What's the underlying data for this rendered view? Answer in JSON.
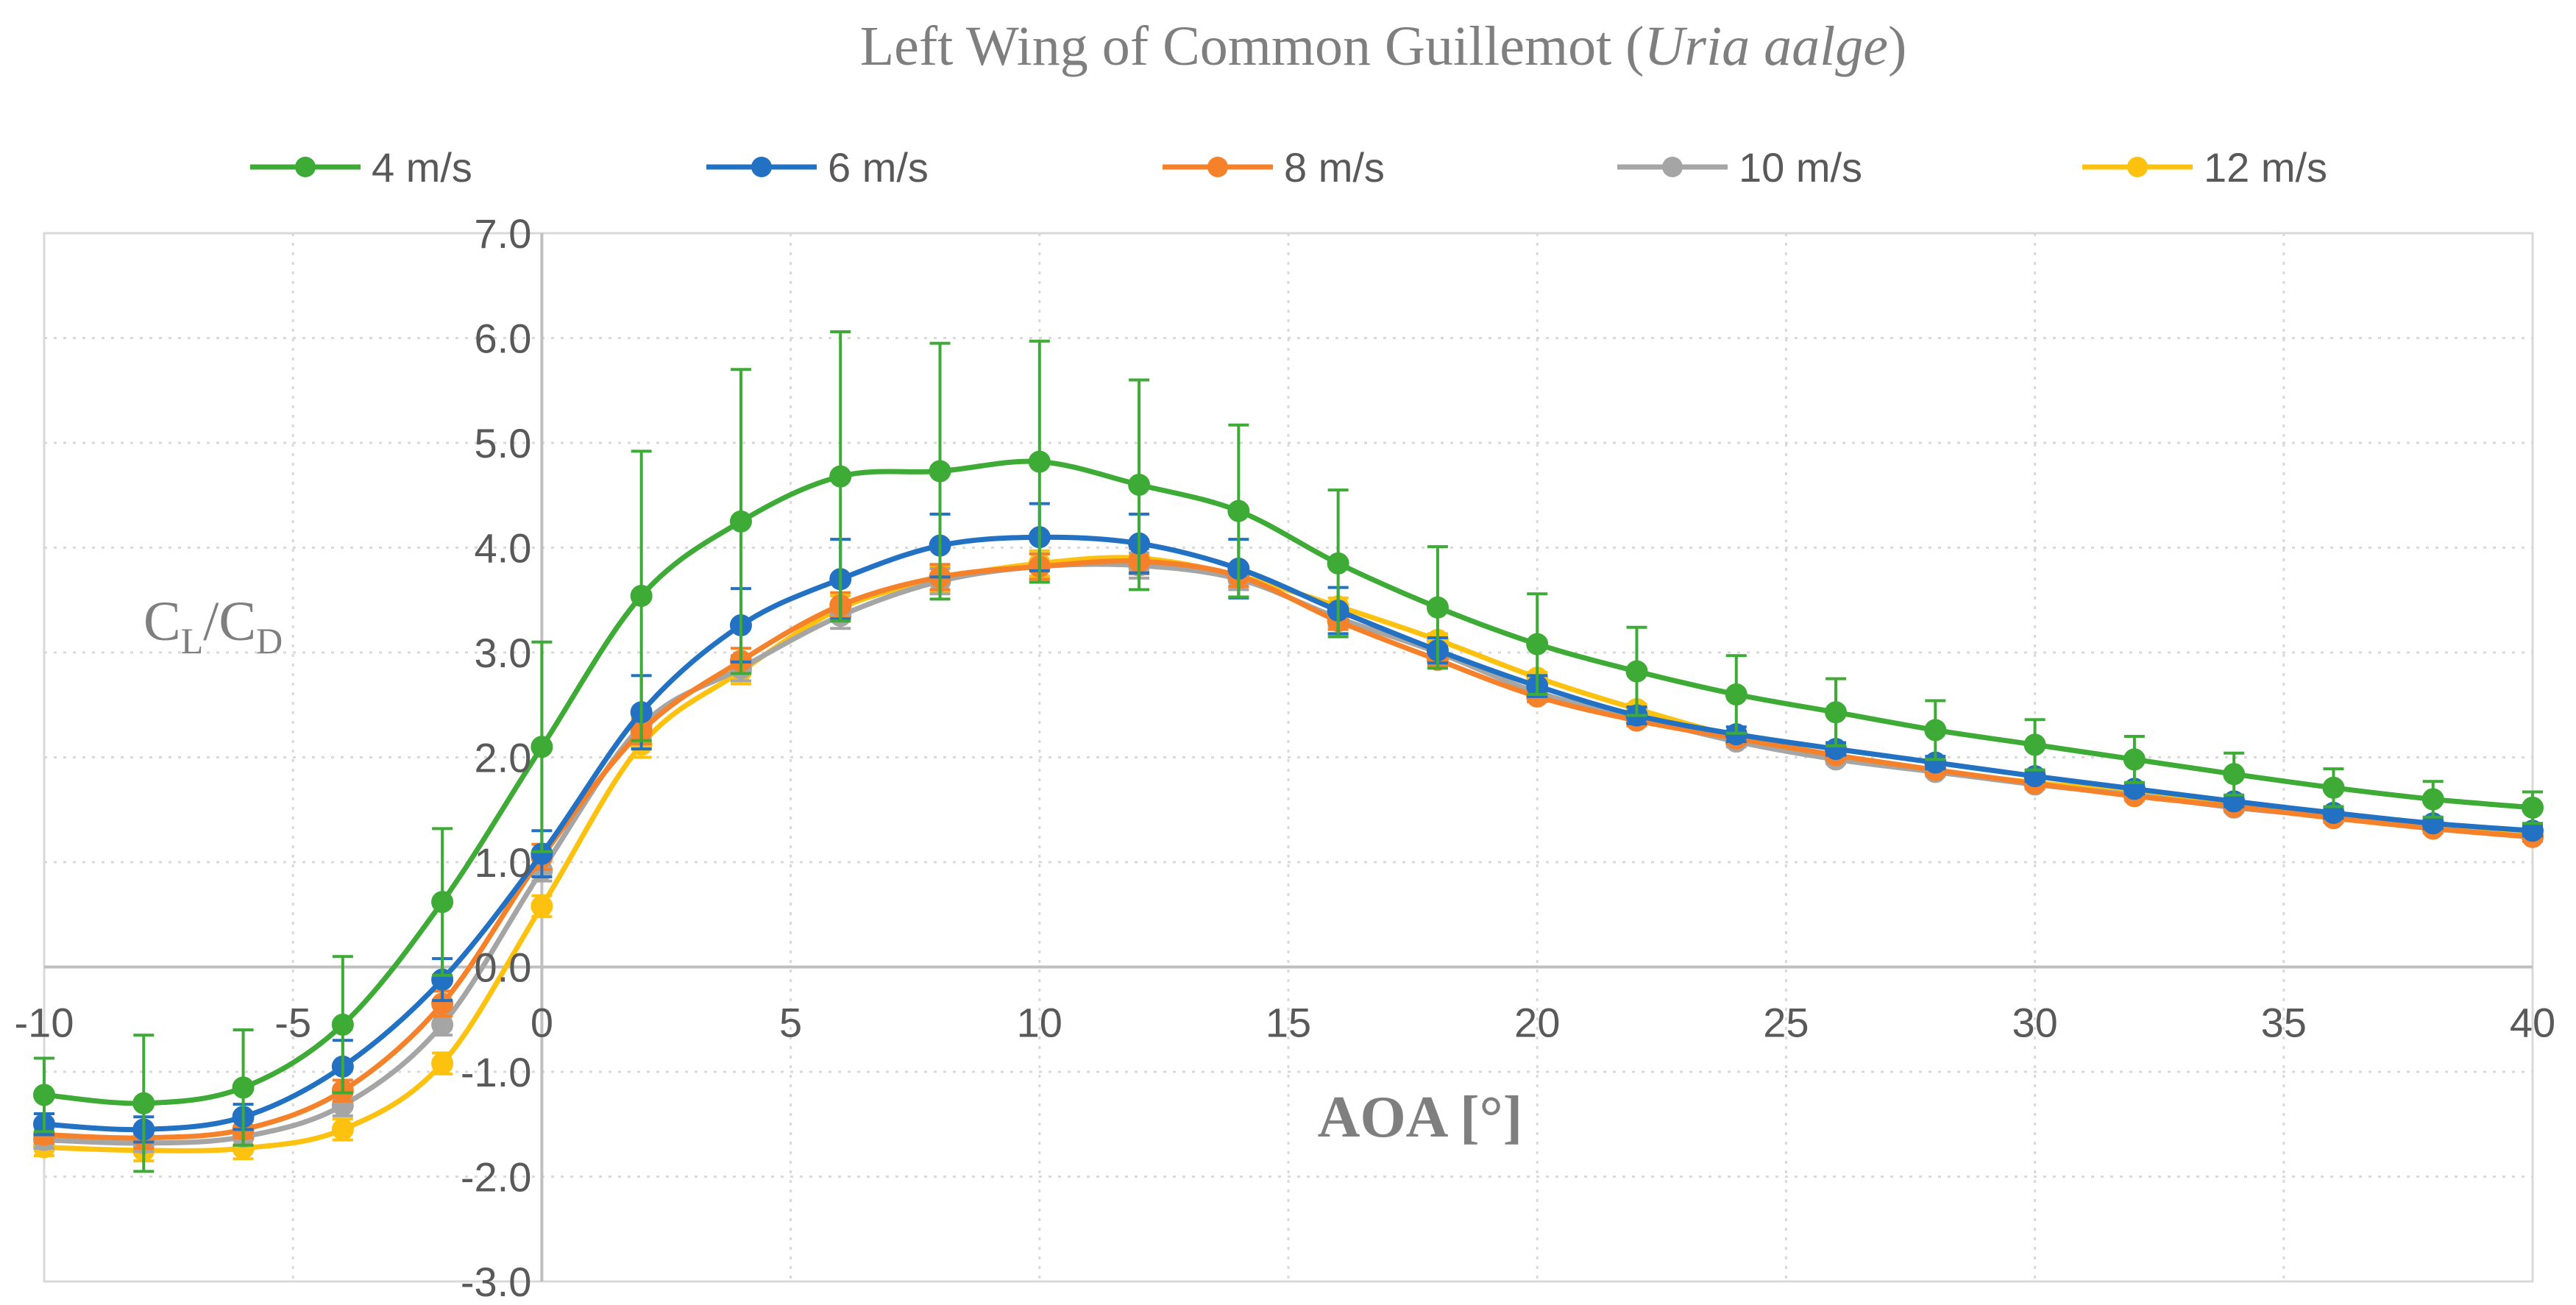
{
  "chart_data": {
    "type": "line",
    "title": "Left Wing of Common Guillemot (",
    "title_italic": "Uria aalge",
    "title_suffix": ")",
    "xlabel": "AOA [°]",
    "ylabel_main": "C",
    "ylabel_sub1": "L",
    "ylabel_slash": "/C",
    "ylabel_sub2": "D",
    "xlim": [
      -10,
      40
    ],
    "ylim": [
      -3.0,
      7.0
    ],
    "xticks": [
      -10,
      -5,
      0,
      5,
      10,
      15,
      20,
      25,
      30,
      35,
      40
    ],
    "xtick_labels": [
      "-10",
      "-5",
      "0",
      "5",
      "10",
      "15",
      "20",
      "25",
      "30",
      "35",
      "40"
    ],
    "yticks": [
      -3,
      -2,
      -1,
      0,
      1,
      2,
      3,
      4,
      5,
      6,
      7
    ],
    "ytick_labels": [
      "-3.0",
      "-2.0",
      "-1.0",
      "0.0",
      "1.0",
      "2.0",
      "3.0",
      "4.0",
      "5.0",
      "6.0",
      "7.0"
    ],
    "grid": true,
    "legend_position": "top",
    "x": [
      -10,
      -8,
      -6,
      -4,
      -2,
      0,
      2,
      4,
      6,
      8,
      10,
      12,
      14,
      16,
      18,
      20,
      22,
      24,
      26,
      28,
      30,
      32,
      34,
      36,
      38,
      40
    ],
    "series": [
      {
        "name": "4 m/s",
        "color": "#3dab35",
        "values": [
          -1.22,
          -1.3,
          -1.15,
          -0.55,
          0.62,
          2.1,
          3.54,
          4.25,
          4.68,
          4.73,
          4.82,
          4.6,
          4.35,
          3.85,
          3.43,
          3.08,
          2.82,
          2.6,
          2.43,
          2.26,
          2.12,
          1.98,
          1.84,
          1.71,
          1.6,
          1.52
        ],
        "errors": [
          0.35,
          0.65,
          0.55,
          0.65,
          0.7,
          1.0,
          1.38,
          1.45,
          1.38,
          1.22,
          1.15,
          1.0,
          0.82,
          0.7,
          0.58,
          0.48,
          0.42,
          0.37,
          0.32,
          0.28,
          0.24,
          0.22,
          0.2,
          0.18,
          0.17,
          0.15
        ]
      },
      {
        "name": "6 m/s",
        "color": "#2271c2",
        "values": [
          -1.5,
          -1.55,
          -1.43,
          -0.95,
          -0.12,
          1.08,
          2.43,
          3.26,
          3.7,
          4.02,
          4.1,
          4.04,
          3.8,
          3.4,
          3.02,
          2.68,
          2.4,
          2.22,
          2.08,
          1.95,
          1.82,
          1.7,
          1.58,
          1.47,
          1.37,
          1.3
        ],
        "errors": [
          0.1,
          0.12,
          0.12,
          0.25,
          0.2,
          0.22,
          0.35,
          0.35,
          0.38,
          0.3,
          0.32,
          0.28,
          0.28,
          0.22,
          0.12,
          0.1,
          0.08,
          0.07,
          0.06,
          0.06,
          0.05,
          0.05,
          0.05,
          0.05,
          0.05,
          0.05
        ]
      },
      {
        "name": "8 m/s",
        "color": "#f5822a",
        "values": [
          -1.6,
          -1.63,
          -1.55,
          -1.18,
          -0.35,
          1.05,
          2.25,
          2.92,
          3.45,
          3.72,
          3.82,
          3.87,
          3.73,
          3.3,
          2.93,
          2.58,
          2.35,
          2.18,
          2.02,
          1.88,
          1.75,
          1.63,
          1.53,
          1.42,
          1.32,
          1.24
        ],
        "errors": [
          0.08,
          0.1,
          0.08,
          0.1,
          0.12,
          0.12,
          0.12,
          0.12,
          0.12,
          0.12,
          0.12,
          0.12,
          0.1,
          0.08,
          0.06,
          0.05,
          0.05,
          0.05,
          0.04,
          0.04,
          0.04,
          0.04,
          0.04,
          0.04,
          0.04,
          0.04
        ]
      },
      {
        "name": "10 m/s",
        "color": "#a5a5a5",
        "values": [
          -1.65,
          -1.68,
          -1.62,
          -1.32,
          -0.55,
          0.92,
          2.3,
          2.85,
          3.35,
          3.68,
          3.82,
          3.83,
          3.7,
          3.33,
          3.0,
          2.62,
          2.38,
          2.15,
          1.98,
          1.86,
          1.74,
          1.64,
          1.52,
          1.43,
          1.32,
          1.24
        ],
        "errors": [
          0.08,
          0.08,
          0.08,
          0.1,
          0.1,
          0.1,
          0.12,
          0.12,
          0.12,
          0.12,
          0.12,
          0.12,
          0.1,
          0.08,
          0.06,
          0.05,
          0.05,
          0.05,
          0.04,
          0.04,
          0.04,
          0.04,
          0.04,
          0.04,
          0.04,
          0.04
        ]
      },
      {
        "name": "12 m/s",
        "color": "#fcc20f",
        "values": [
          -1.72,
          -1.75,
          -1.73,
          -1.55,
          -0.92,
          0.58,
          2.12,
          2.82,
          3.42,
          3.7,
          3.85,
          3.9,
          3.73,
          3.44,
          3.12,
          2.76,
          2.46,
          2.2,
          2.02,
          1.87,
          1.76,
          1.67,
          1.55,
          1.44,
          1.34,
          1.25
        ],
        "errors": [
          0.08,
          0.1,
          0.1,
          0.1,
          0.1,
          0.1,
          0.12,
          0.12,
          0.12,
          0.12,
          0.12,
          0.12,
          0.1,
          0.08,
          0.06,
          0.05,
          0.05,
          0.05,
          0.04,
          0.04,
          0.04,
          0.04,
          0.04,
          0.04,
          0.04,
          0.04
        ]
      }
    ]
  }
}
